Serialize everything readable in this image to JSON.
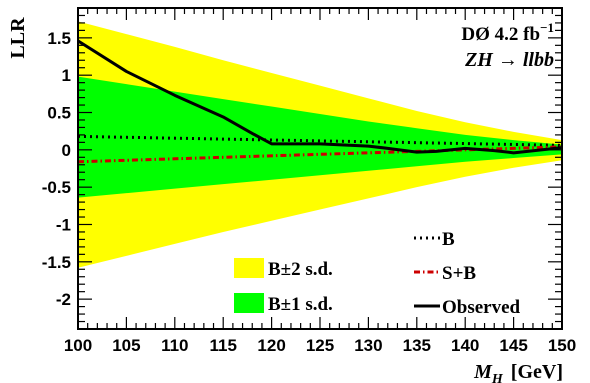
{
  "chart_data": {
    "type": "line",
    "ylabel": "LLR",
    "xlabel_var": "M",
    "xlabel_sub": "H",
    "xlabel_unit": "[GeV]",
    "annotation": {
      "experiment": "DØ 4.2 fb",
      "lumi_exp": "−1",
      "channel_lhs": "ZH",
      "channel_arrow": "→",
      "channel_rhs": "llbb"
    },
    "xlim": [
      100,
      150
    ],
    "ylim": [
      -2.4,
      1.9
    ],
    "x_ticks": [
      100,
      105,
      110,
      115,
      120,
      125,
      130,
      135,
      140,
      145,
      150
    ],
    "y_ticks": [
      -2,
      -1.5,
      -1,
      -0.5,
      0,
      0.5,
      1,
      1.5
    ],
    "y_tick_labels": [
      "-2",
      "-1.5",
      "-1",
      "-0.5",
      "0",
      "0.5",
      "1",
      "1.5"
    ],
    "x": [
      100,
      105,
      110,
      115,
      120,
      125,
      130,
      135,
      140,
      145,
      150
    ],
    "bands": [
      {
        "name": "B±2 s.d.",
        "color": "#ffff00",
        "upper": [
          1.72,
          1.55,
          1.38,
          1.2,
          1.03,
          0.86,
          0.69,
          0.52,
          0.37,
          0.24,
          0.13
        ],
        "lower": [
          -1.58,
          -1.42,
          -1.26,
          -1.1,
          -0.95,
          -0.8,
          -0.65,
          -0.5,
          -0.36,
          -0.24,
          -0.14
        ]
      },
      {
        "name": "B±1 s.d.",
        "color": "#00ff00",
        "upper": [
          0.98,
          0.88,
          0.78,
          0.68,
          0.58,
          0.48,
          0.38,
          0.29,
          0.2,
          0.13,
          0.07
        ],
        "lower": [
          -0.64,
          -0.58,
          -0.52,
          -0.46,
          -0.4,
          -0.34,
          -0.28,
          -0.22,
          -0.16,
          -0.11,
          -0.06
        ]
      }
    ],
    "series": [
      {
        "name": "B",
        "style": "dotted",
        "color": "#000000",
        "x": [
          100,
          150
        ],
        "values": [
          0.18,
          0.06
        ]
      },
      {
        "name": "S+B",
        "style": "dashdot",
        "color": "#cc0000",
        "x": [
          100,
          150
        ],
        "values": [
          -0.16,
          0.04
        ]
      },
      {
        "name": "Observed",
        "style": "solid",
        "color": "#000000",
        "x": [
          100,
          105,
          110,
          115,
          118,
          120,
          125,
          130,
          132,
          135,
          137,
          140,
          143,
          145,
          150
        ],
        "values": [
          1.46,
          1.05,
          0.73,
          0.44,
          0.22,
          0.08,
          0.08,
          0.05,
          0.02,
          -0.03,
          -0.02,
          0.02,
          -0.01,
          -0.04,
          0.03
        ]
      }
    ]
  }
}
